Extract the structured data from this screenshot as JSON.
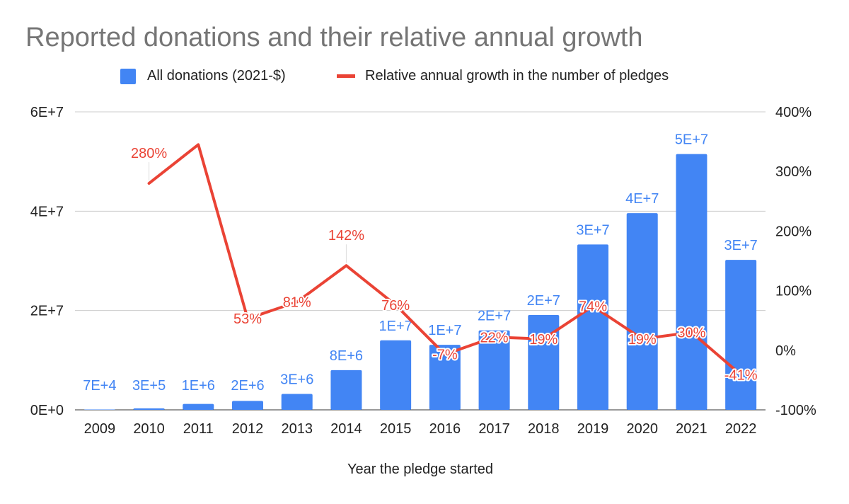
{
  "chart_data": {
    "type": "bar",
    "title": "Reported donations and their relative annual growth",
    "xlabel": "Year the pledge started",
    "categories": [
      "2009",
      "2010",
      "2011",
      "2012",
      "2013",
      "2014",
      "2015",
      "2016",
      "2017",
      "2018",
      "2019",
      "2020",
      "2021",
      "2022"
    ],
    "series": [
      {
        "name": "All donations (2021-$)",
        "type": "bar",
        "axis": "left",
        "color": "#4285f4",
        "values": [
          70000,
          300000,
          1200000,
          1800000,
          3200000,
          8000000,
          14000000,
          13100000,
          16000000,
          19100000,
          33300000,
          39600000,
          51500000,
          30200000
        ],
        "labels": [
          "7E+4",
          "3E+5",
          "1E+6",
          "2E+6",
          "3E+6",
          "8E+6",
          "1E+7",
          "1E+7",
          "2E+7",
          "2E+7",
          "3E+7",
          "4E+7",
          "5E+7",
          "3E+7"
        ]
      },
      {
        "name": "Relative annual growth in the number of pledges",
        "type": "line",
        "axis": "right",
        "color": "#ea4335",
        "values": [
          null,
          280,
          345,
          53,
          81,
          142,
          76,
          -7,
          22,
          19,
          74,
          19,
          30,
          -41
        ],
        "labels": [
          "",
          "280%",
          "",
          "53%",
          "81%",
          "142%",
          "76%",
          "-7%",
          "22%",
          "19%",
          "74%",
          "19%",
          "30%",
          "-41%"
        ]
      }
    ],
    "y_left": {
      "min": 0,
      "max": 60000000,
      "ticks": [
        0,
        20000000,
        40000000,
        60000000
      ],
      "tick_labels": [
        "0E+0",
        "2E+7",
        "4E+7",
        "6E+7"
      ]
    },
    "y_right": {
      "min": -100,
      "max": 400,
      "ticks": [
        -100,
        0,
        100,
        200,
        300,
        400
      ],
      "tick_labels": [
        "-100%",
        "0%",
        "100%",
        "200%",
        "300%",
        "400%"
      ]
    },
    "grid": true,
    "legend_position": "top"
  }
}
